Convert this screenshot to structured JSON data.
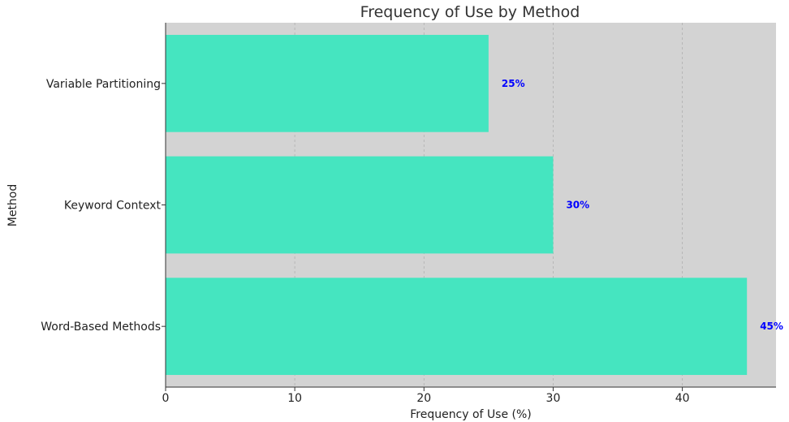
{
  "chart_data": {
    "type": "bar",
    "orientation": "horizontal",
    "title": "Frequency of Use by Method",
    "xlabel": "Frequency of Use (%)",
    "ylabel": "Method",
    "categories": [
      "Word-Based Methods",
      "Keyword Context",
      "Variable Partitioning"
    ],
    "values": [
      45,
      30,
      25
    ],
    "data_labels": [
      "45%",
      "30%",
      "25%"
    ],
    "xlim": [
      0,
      47.25
    ],
    "xticks": [
      0,
      10,
      20,
      30,
      40
    ],
    "xtick_labels": [
      "0",
      "10",
      "20",
      "30",
      "40"
    ],
    "grid": true,
    "colors": {
      "bar": "#45e5c0",
      "plot_background": "#d3d3d3",
      "data_label": "#0000ff",
      "axis": "#333333"
    }
  }
}
